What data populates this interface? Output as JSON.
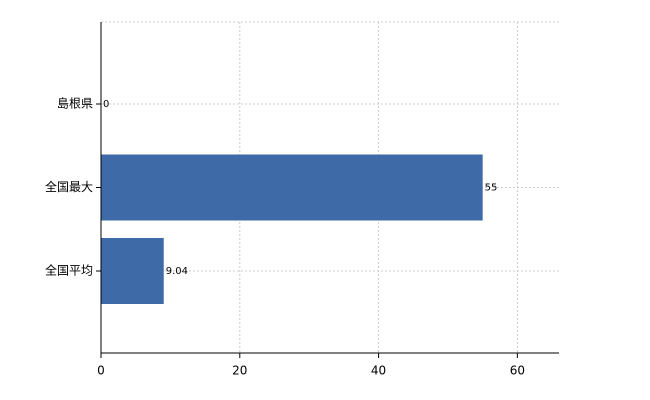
{
  "chart_data": {
    "type": "barh",
    "categories": [
      "島根県",
      "全国最大",
      "全国平均"
    ],
    "values": [
      0,
      55,
      9.04
    ],
    "color": "#3e6ba8",
    "xlim": [
      0,
      66
    ],
    "xticks": [
      0,
      20,
      40,
      60
    ],
    "grid": true
  }
}
